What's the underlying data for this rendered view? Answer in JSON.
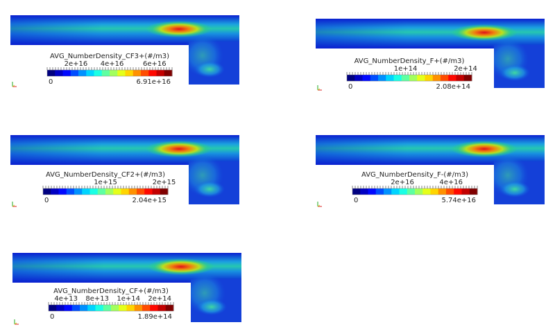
{
  "panels": [
    {
      "title": "AVG_NumberDensity_CF3+(#/m3)",
      "ticks": [
        "2e+16",
        "4e+16",
        "6e+16"
      ],
      "min": "0",
      "max": "6.91e+16"
    },
    {
      "title": "AVG_NumberDensity_F+(#/m3)",
      "ticks": [
        "1e+14",
        "2e+14"
      ],
      "min": "0",
      "max": "2.08e+14"
    },
    {
      "title": "AVG_NumberDensity_CF2+(#/m3)",
      "ticks": [
        "1e+15",
        "2e+15"
      ],
      "min": "0",
      "max": "2.04e+15"
    },
    {
      "title": "AVG_NumberDensity_F-(#/m3)",
      "ticks": [
        "2e+16",
        "4e+16"
      ],
      "min": "0",
      "max": "5.74e+16"
    },
    {
      "title": "AVG_NumberDensity_CF+(#/m3)",
      "ticks": [
        "4e+13",
        "8e+13",
        "1e+14",
        "2e+14"
      ],
      "min": "0",
      "max": "1.89e+14"
    }
  ]
}
